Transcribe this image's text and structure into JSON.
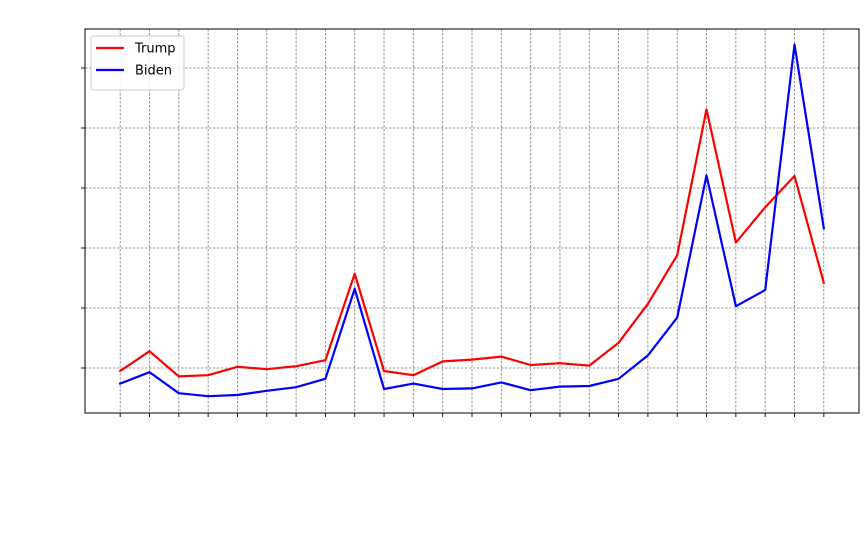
{
  "chart_data": {
    "type": "line",
    "title": "",
    "xlabel": "",
    "ylabel": "",
    "x": [
      1,
      2,
      3,
      4,
      5,
      6,
      7,
      8,
      9,
      10,
      11,
      12,
      13,
      14,
      15,
      16,
      17,
      18,
      19,
      20,
      21,
      22,
      23,
      24,
      25
    ],
    "xlim": [
      -0.2,
      26.2
    ],
    "ylim": [
      -0.75,
      5.65
    ],
    "yticks": [
      0,
      1,
      2,
      3,
      4,
      5
    ],
    "grid": true,
    "legend_position": "top-left",
    "series": [
      {
        "name": "Trump",
        "color": "#ff0000",
        "values": [
          -0.05,
          0.28,
          -0.14,
          -0.12,
          0.02,
          -0.02,
          0.03,
          0.13,
          1.57,
          -0.05,
          -0.12,
          0.11,
          0.14,
          0.19,
          0.05,
          0.08,
          0.04,
          0.42,
          1.07,
          1.88,
          4.31,
          2.09,
          2.68,
          3.2,
          1.42
        ]
      },
      {
        "name": "Biden",
        "color": "#0000ff",
        "values": [
          -0.26,
          -0.07,
          -0.42,
          -0.47,
          -0.45,
          -0.38,
          -0.32,
          -0.18,
          1.32,
          -0.35,
          -0.26,
          -0.35,
          -0.34,
          -0.24,
          -0.37,
          -0.31,
          -0.3,
          -0.18,
          0.21,
          0.84,
          3.21,
          1.03,
          1.3,
          5.39,
          2.33
        ]
      }
    ]
  }
}
